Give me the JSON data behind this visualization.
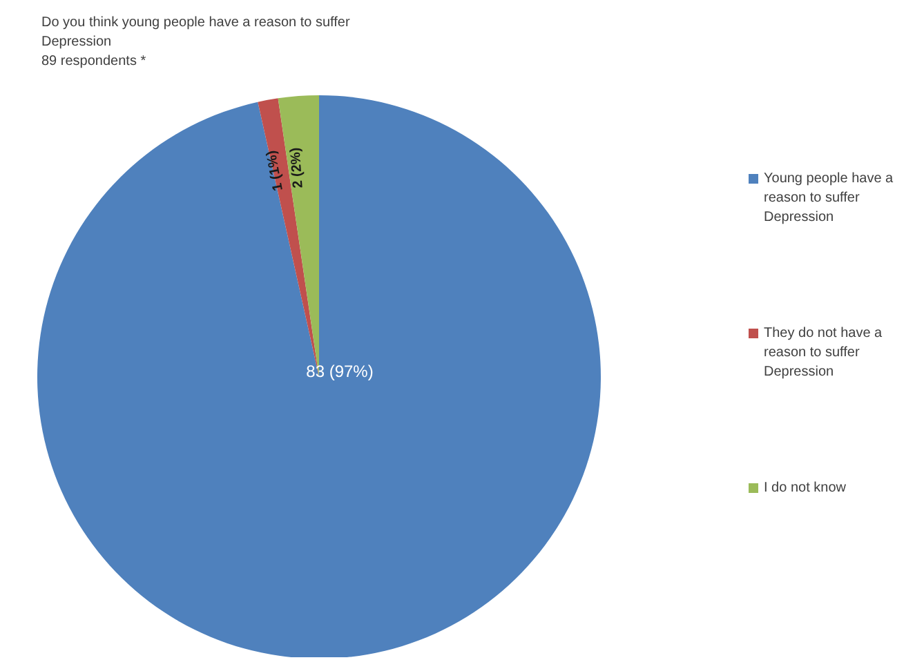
{
  "chart_data": {
    "type": "pie",
    "title": "Do you think young people have a reason to suffer Depression",
    "subtitle": "89 respondents *",
    "categories": [
      "Young people have a reason to suffer Depression",
      "They do not have a reason to suffer Depression",
      "I do not know"
    ],
    "values": [
      83,
      1,
      2
    ],
    "value_labels": [
      "83 (97%)",
      "1 (1%)",
      "2 (2%)"
    ],
    "colors": [
      "#4f81bd",
      "#c0504d",
      "#9bbb59"
    ],
    "legend": "right"
  }
}
